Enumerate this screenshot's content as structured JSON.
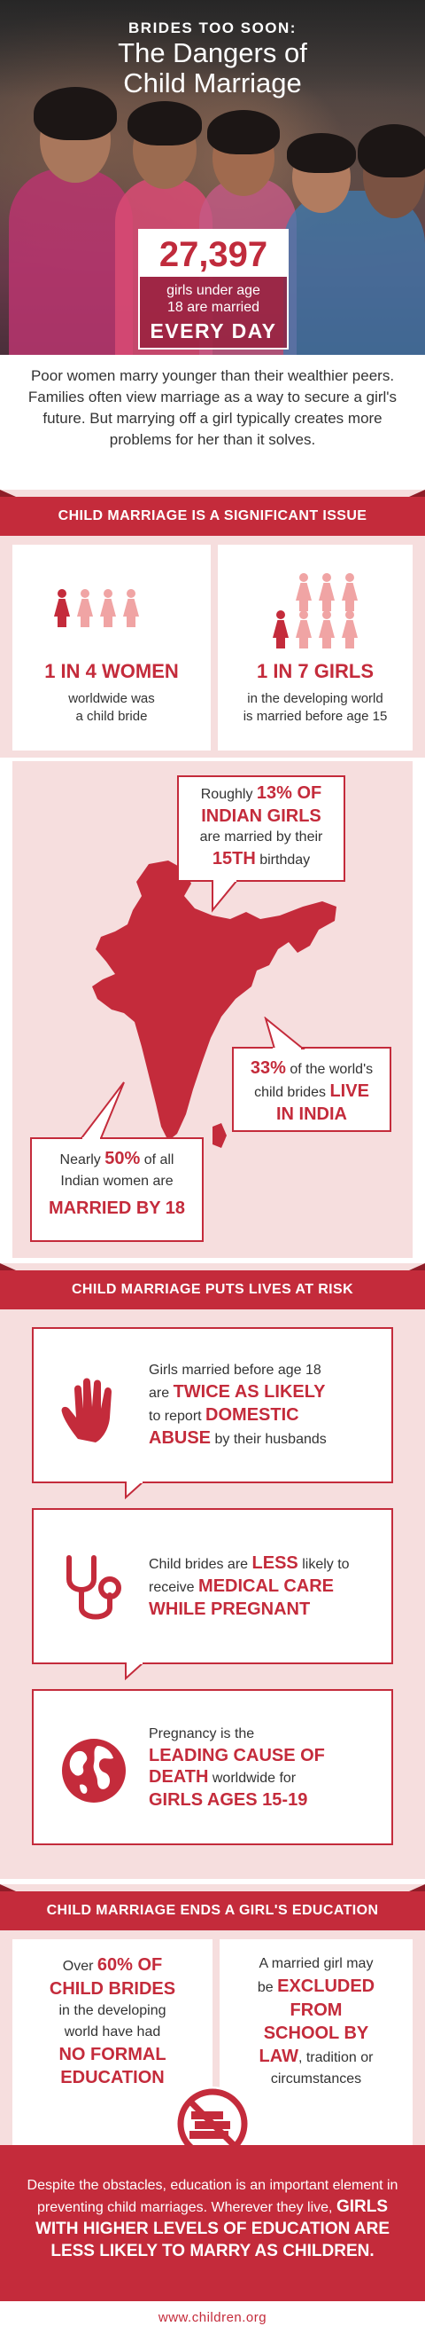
{
  "hero": {
    "kicker": "BRIDES TOO SOON:",
    "title_line1": "The Dangers of",
    "title_line2": "Child Marriage",
    "stat_number": "27,397",
    "stat_desc_line1": "girls under age",
    "stat_desc_line2": "18 are married",
    "stat_every": "EVERY DAY"
  },
  "intro": "Poor women marry younger than their wealthier peers. Families often view marriage as a way to secure a girl's future. But marrying off a girl typically creates more problems for her than it solves.",
  "section1": {
    "banner": "CHILD MARRIAGE IS A SIGNIFICANT ISSUE",
    "left_big": "1 IN 4 WOMEN",
    "left_small_line1": "worldwide was",
    "left_small_line2": "a child bride",
    "right_big": "1 IN 7 GIRLS",
    "right_small_line1": "in the developing world",
    "right_small_line2": "is married before age 15",
    "left_highlight_count": 1,
    "left_total": 4,
    "right_highlight_count": 1,
    "right_total": 7
  },
  "map": {
    "b1_l1": "Roughly",
    "b1_hl1": "13% OF",
    "b1_hl2": "INDIAN GIRLS",
    "b1_l3": "are married by their",
    "b1_hl3": "15TH",
    "b1_l4": "birthday",
    "b2_hl1": "33%",
    "b2_l1": "of the world's",
    "b2_l2": "child brides",
    "b2_hl2": "LIVE",
    "b2_hl3": "IN INDIA",
    "b3_l1": "Nearly",
    "b3_hl1": "50%",
    "b3_l2": "of all",
    "b3_l3": "Indian women are",
    "b3_hl2": "MARRIED BY 18"
  },
  "section2": {
    "banner": "CHILD MARRIAGE PUTS LIVES AT RISK",
    "r1_l1": "Girls married before age 18",
    "r1_l2a": "are",
    "r1_hl1": "TWICE AS LIKELY",
    "r1_l3a": "to report",
    "r1_hl2": "DOMESTIC",
    "r1_hl3": "ABUSE",
    "r1_l4": "by their husbands",
    "r2_l1a": "Child brides are",
    "r2_hl1": "LESS",
    "r2_l1b": "likely to",
    "r2_l2a": "receive",
    "r2_hl2": "MEDICAL CARE",
    "r2_hl3": "WHILE PREGNANT",
    "r3_l1": "Pregnancy is the",
    "r3_hl1": "LEADING CAUSE OF",
    "r3_hl2": "DEATH",
    "r3_l3": "worldwide for",
    "r3_hl3": "GIRLS AGES 15-19",
    "icons": [
      "hand-icon",
      "stethoscope-icon",
      "globe-icon"
    ]
  },
  "section3": {
    "banner": "CHILD MARRIAGE ENDS A GIRL'S EDUCATION",
    "l_l1": "Over",
    "l_hl1": "60% OF",
    "l_hl2": "CHILD BRIDES",
    "l_l2": "in the developing",
    "l_l3": "world have had",
    "l_hl3": "NO FORMAL",
    "l_hl4": "EDUCATION",
    "r_l1": "A married girl may",
    "r_l2": "be",
    "r_hl1": "EXCLUDED",
    "r_hl2": "FROM",
    "r_hl3": "SCHOOL BY",
    "r_hl4": "LAW",
    "r_l3": ", tradition or",
    "r_l4": "circumstances",
    "icon": "no-books-icon"
  },
  "final": {
    "l1": "Despite the obstacles, education is an important element in preventing child marriages. Wherever they live,",
    "hl": "GIRLS WITH HIGHER LEVELS OF EDUCATION ARE LESS LIKELY TO MARRY AS CHILDREN."
  },
  "footer": "www.children.org",
  "colors": {
    "accent": "#c42b3b",
    "pink": "#f6dede",
    "light_person": "#f0a4a4"
  }
}
